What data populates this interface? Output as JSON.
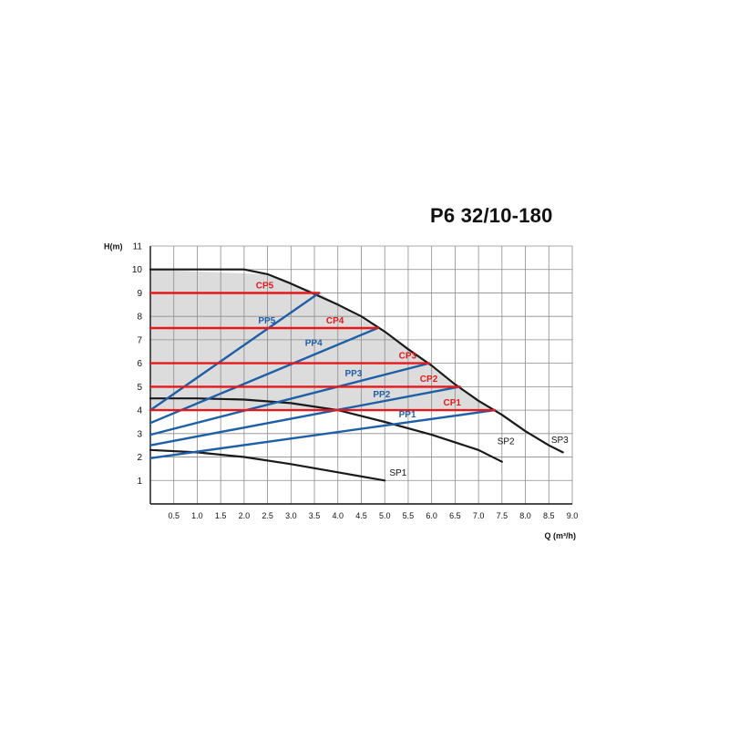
{
  "chart_data": {
    "type": "line",
    "title": "P6 32/10-180",
    "xlabel": "Q (m³/h)",
    "ylabel": "H(m)",
    "xlim": [
      0,
      9.0
    ],
    "ylim": [
      0,
      11
    ],
    "x_ticks": [
      "0.5",
      "1.0",
      "1.5",
      "2.0",
      "2.5",
      "3.0",
      "3.5",
      "4.0",
      "4.5",
      "5.0",
      "5.5",
      "6.0",
      "6.5",
      "7.0",
      "7.5",
      "8.0",
      "8.5",
      "9.0"
    ],
    "y_ticks": [
      "1",
      "2",
      "3",
      "4",
      "5",
      "6",
      "7",
      "8",
      "9",
      "10",
      "11"
    ],
    "grid": true,
    "colors": {
      "sp": "#1a1a1a",
      "cp": "#e5191c",
      "pp": "#1f5fa6",
      "fill": "#dcdcdc",
      "grid": "#8c8c8c"
    },
    "region": [
      [
        0,
        4
      ],
      [
        0,
        10.0
      ],
      [
        2.4,
        9.8
      ],
      [
        3.6,
        9.0
      ],
      [
        4.8,
        7.55
      ],
      [
        5.9,
        6.0
      ],
      [
        6.55,
        5.0
      ],
      [
        7.3,
        4.0
      ]
    ],
    "series": [
      {
        "name": "SP1",
        "group": "sp",
        "x": [
          0,
          1,
          2,
          3,
          4,
          5
        ],
        "y": [
          2.3,
          2.2,
          2.0,
          1.7,
          1.35,
          1.0
        ]
      },
      {
        "name": "SP2",
        "group": "sp",
        "x": [
          0,
          1,
          2,
          3,
          4,
          5,
          6,
          7,
          7.5
        ],
        "y": [
          4.5,
          4.5,
          4.45,
          4.3,
          4.0,
          3.5,
          2.95,
          2.3,
          1.8
        ]
      },
      {
        "name": "SP3",
        "group": "sp",
        "x": [
          0,
          0.5,
          1,
          1.5,
          2,
          2.5,
          3,
          3.5,
          4,
          4.5,
          5,
          5.5,
          6,
          6.5,
          7,
          7.5,
          8,
          8.5,
          8.8
        ],
        "y": [
          10.0,
          10.0,
          10.0,
          10.0,
          10.0,
          9.8,
          9.4,
          8.95,
          8.5,
          8.0,
          7.35,
          6.6,
          5.9,
          5.1,
          4.4,
          3.8,
          3.1,
          2.5,
          2.2
        ]
      },
      {
        "name": "CP1",
        "group": "cp",
        "x": [
          0,
          7.35
        ],
        "y": [
          4,
          4
        ]
      },
      {
        "name": "CP2",
        "group": "cp",
        "x": [
          0,
          6.6
        ],
        "y": [
          5,
          5
        ]
      },
      {
        "name": "CP3",
        "group": "cp",
        "x": [
          0,
          5.95
        ],
        "y": [
          6,
          6
        ]
      },
      {
        "name": "CP4",
        "group": "cp",
        "x": [
          0,
          4.85
        ],
        "y": [
          7.5,
          7.5
        ]
      },
      {
        "name": "CP5",
        "group": "cp",
        "x": [
          0,
          3.6
        ],
        "y": [
          9,
          9
        ]
      },
      {
        "name": "PP1",
        "group": "pp",
        "x": [
          0,
          7.35
        ],
        "y": [
          1.95,
          4.0
        ]
      },
      {
        "name": "PP2",
        "group": "pp",
        "x": [
          0,
          6.6
        ],
        "y": [
          2.5,
          5.0
        ]
      },
      {
        "name": "PP3",
        "group": "pp",
        "x": [
          0,
          5.95
        ],
        "y": [
          2.95,
          6.0
        ]
      },
      {
        "name": "PP4",
        "group": "pp",
        "x": [
          0,
          4.85
        ],
        "y": [
          3.45,
          7.5
        ]
      },
      {
        "name": "PP5",
        "group": "pp",
        "x": [
          0,
          3.6
        ],
        "y": [
          4.0,
          9.0
        ]
      }
    ],
    "annotations": [
      {
        "text": "CP5",
        "x": 2.25,
        "y": 9.2,
        "group": "cp"
      },
      {
        "text": "CP4",
        "x": 3.75,
        "y": 7.7,
        "group": "cp"
      },
      {
        "text": "CP3",
        "x": 5.3,
        "y": 6.2,
        "group": "cp"
      },
      {
        "text": "CP2",
        "x": 5.75,
        "y": 5.2,
        "group": "cp"
      },
      {
        "text": "CP1",
        "x": 6.25,
        "y": 4.2,
        "group": "cp"
      },
      {
        "text": "PP5",
        "x": 2.3,
        "y": 7.7,
        "group": "pp"
      },
      {
        "text": "PP4",
        "x": 3.3,
        "y": 6.75,
        "group": "pp"
      },
      {
        "text": "PP3",
        "x": 4.15,
        "y": 5.45,
        "group": "pp"
      },
      {
        "text": "PP2",
        "x": 4.75,
        "y": 4.55,
        "group": "pp"
      },
      {
        "text": "PP1",
        "x": 5.3,
        "y": 3.7,
        "group": "pp"
      },
      {
        "text": "SP1",
        "x": 5.1,
        "y": 1.2,
        "group": "sp"
      },
      {
        "text": "SP2",
        "x": 7.4,
        "y": 2.55,
        "group": "sp"
      },
      {
        "text": "SP3",
        "x": 8.55,
        "y": 2.6,
        "group": "sp"
      }
    ]
  }
}
